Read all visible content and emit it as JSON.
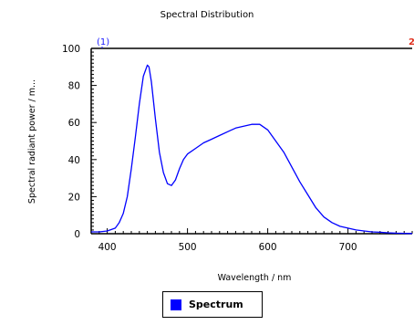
{
  "chart_data": {
    "type": "line",
    "title": "Spectral Distribution",
    "xlabel": "Wavelength / nm",
    "ylabel": "Spectral radiant power / m...",
    "xlim": [
      380,
      780
    ],
    "ylim": [
      0,
      100
    ],
    "x_ticks": [
      400,
      500,
      600,
      700
    ],
    "y_ticks": [
      0,
      20,
      40,
      60,
      80,
      100
    ],
    "grid": false,
    "legend_position": "bottom",
    "markers": [
      {
        "label": "(1)",
        "color": "#1a1aff"
      },
      {
        "label": "2",
        "color": "#e0301e"
      }
    ],
    "series": [
      {
        "name": "Spectrum",
        "color": "#0000ff",
        "x": [
          380,
          390,
          400,
          410,
          415,
          420,
          425,
          430,
          435,
          440,
          445,
          450,
          452,
          455,
          460,
          465,
          470,
          475,
          480,
          485,
          490,
          495,
          500,
          510,
          520,
          530,
          540,
          550,
          560,
          570,
          580,
          590,
          600,
          610,
          620,
          630,
          640,
          650,
          660,
          670,
          680,
          690,
          700,
          710,
          720,
          730,
          740,
          750,
          760,
          770,
          780
        ],
        "y": [
          1,
          1,
          1.5,
          3,
          6,
          11,
          20,
          35,
          52,
          70,
          85,
          91,
          90,
          82,
          62,
          44,
          33,
          27,
          26,
          29,
          35,
          40,
          43,
          46,
          49,
          51,
          53,
          55,
          57,
          58,
          59,
          59,
          56,
          50,
          44,
          36,
          28,
          21,
          14,
          9,
          6,
          4,
          3,
          2,
          1.5,
          1,
          0.8,
          0.5,
          0.3,
          0.2,
          0.1
        ]
      }
    ]
  }
}
